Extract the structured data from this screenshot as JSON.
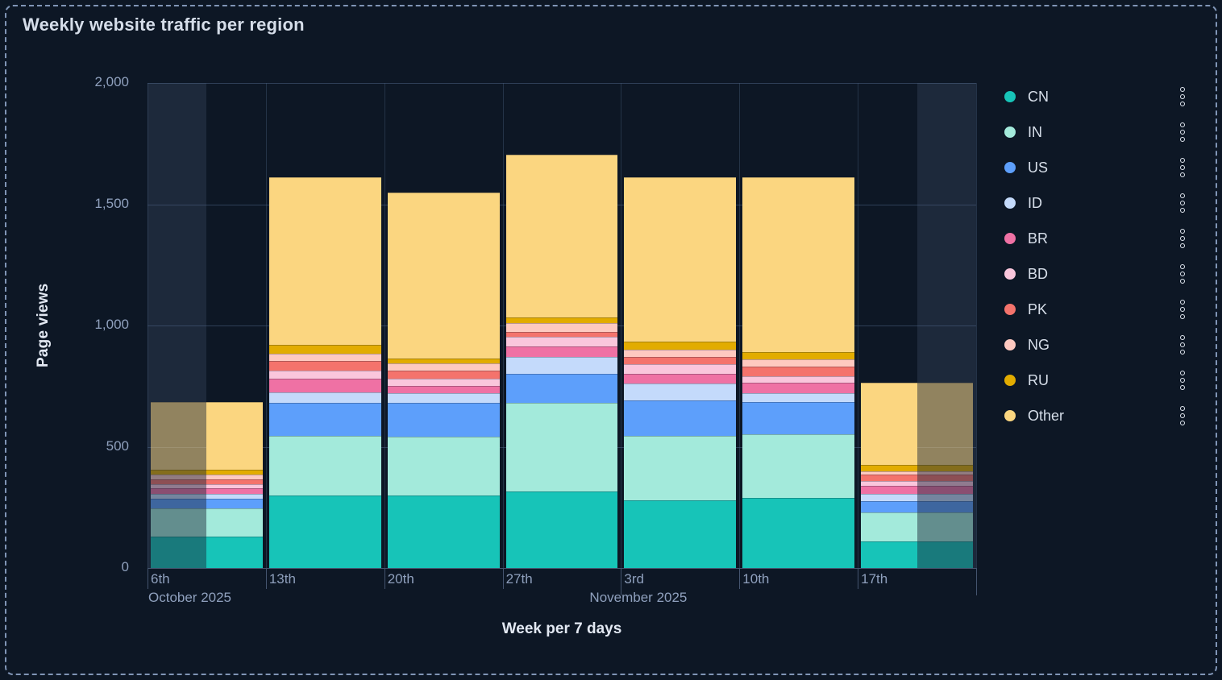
{
  "panel": {
    "title": "Weekly website traffic per region"
  },
  "chart_data": {
    "type": "bar",
    "stacked": true,
    "title": "Weekly website traffic per region",
    "xlabel": "Week per 7 days",
    "ylabel": "Page views",
    "ylim": [
      0,
      2000
    ],
    "grid": true,
    "legend_position": "right",
    "y_ticks": [
      "0",
      "500",
      "1,000",
      "1,500",
      "2,000"
    ],
    "y_tick_values": [
      0,
      500,
      1000,
      1500,
      2000
    ],
    "categories": [
      "6th",
      "13th",
      "20th",
      "27th",
      "3rd",
      "10th",
      "17th"
    ],
    "month_labels": [
      {
        "text": "October 2025",
        "anchor_index": 0
      },
      {
        "text": "November 2025",
        "anchor_index": 4
      }
    ],
    "series": [
      {
        "name": "CN",
        "color": "#17c4b8",
        "values": [
          130,
          300,
          300,
          315,
          280,
          290,
          110
        ]
      },
      {
        "name": "IN",
        "color": "#a3eadb",
        "values": [
          115,
          245,
          240,
          365,
          265,
          260,
          120
        ]
      },
      {
        "name": "US",
        "color": "#5d9ffb",
        "values": [
          40,
          135,
          140,
          120,
          145,
          135,
          45
        ]
      },
      {
        "name": "ID",
        "color": "#c4dafb",
        "values": [
          20,
          45,
          40,
          70,
          70,
          35,
          30
        ]
      },
      {
        "name": "BR",
        "color": "#ef71a4",
        "values": [
          25,
          55,
          30,
          45,
          40,
          45,
          35
        ]
      },
      {
        "name": "BD",
        "color": "#fac6dc",
        "values": [
          15,
          35,
          30,
          40,
          40,
          25,
          20
        ]
      },
      {
        "name": "PK",
        "color": "#f4736c",
        "values": [
          20,
          40,
          35,
          20,
          30,
          40,
          25
        ]
      },
      {
        "name": "NG",
        "color": "#fec9c0",
        "values": [
          20,
          30,
          30,
          35,
          30,
          30,
          15
        ]
      },
      {
        "name": "RU",
        "color": "#e2ac00",
        "values": [
          20,
          35,
          20,
          25,
          35,
          30,
          25
        ]
      },
      {
        "name": "Other",
        "color": "#fbd680",
        "values": [
          280,
          690,
          685,
          670,
          675,
          720,
          340
        ]
      }
    ],
    "totals": [
      685,
      1610,
      1550,
      1705,
      1610,
      1610,
      765
    ],
    "partial_buckets": {
      "first_bucket_dim_side": "left",
      "last_bucket_dim_side": "right"
    },
    "legend_menu_icon": "vertical-dots-icon"
  }
}
